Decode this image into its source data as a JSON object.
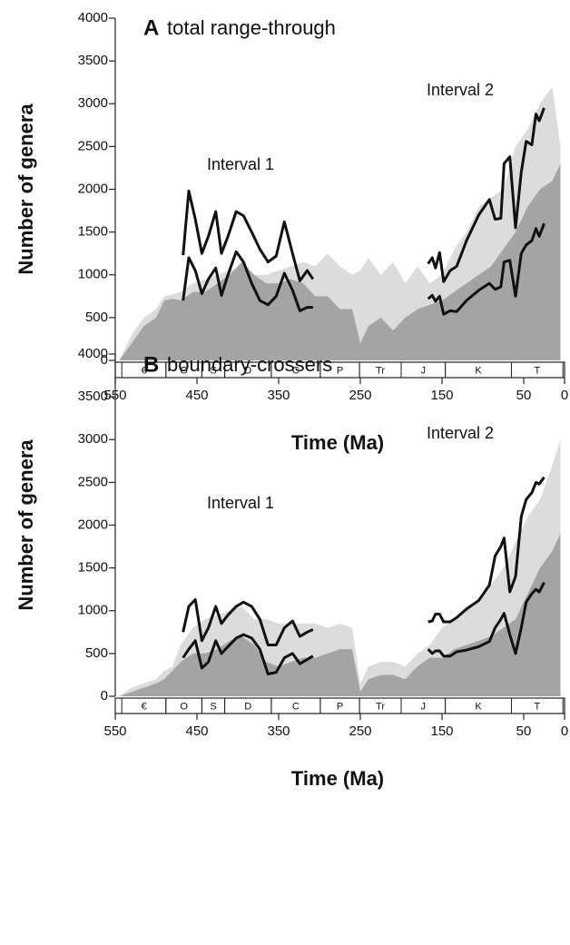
{
  "chart_data": [
    {
      "type": "area-line",
      "panel": "A",
      "title": "total range-through",
      "x_label": "Time (Ma)",
      "y_label": "Number of genera",
      "xlim": [
        550,
        0
      ],
      "xticks": [
        550,
        450,
        350,
        250,
        150,
        50,
        0
      ],
      "ylim": [
        0,
        4000
      ],
      "yticks": [
        0,
        500,
        1000,
        1500,
        2000,
        2500,
        3000,
        3500,
        4000
      ],
      "annotations": [
        "Interval 1",
        "Interval 2"
      ],
      "periods": [
        {
          "label": "€",
          "start": 542,
          "end": 488
        },
        {
          "label": "O",
          "start": 488,
          "end": 444
        },
        {
          "label": "S",
          "start": 444,
          "end": 416
        },
        {
          "label": "D",
          "start": 416,
          "end": 359
        },
        {
          "label": "C",
          "start": 359,
          "end": 299
        },
        {
          "label": "P",
          "start": 299,
          "end": 251
        },
        {
          "label": "Tr",
          "start": 251,
          "end": 200
        },
        {
          "label": "J",
          "start": 200,
          "end": 146
        },
        {
          "label": "K",
          "start": 146,
          "end": 65
        },
        {
          "label": "T",
          "start": 65,
          "end": 2
        }
      ],
      "areas": [
        {
          "color": "#dcdcdc",
          "x": [
            545,
            530,
            515,
            500,
            490,
            480,
            470,
            455,
            440,
            425,
            410,
            395,
            380,
            365,
            350,
            335,
            320,
            305,
            290,
            275,
            260,
            250,
            240,
            225,
            210,
            195,
            180,
            165,
            150,
            135,
            120,
            105,
            90,
            75,
            60,
            45,
            30,
            15,
            5
          ],
          "values": [
            0,
            300,
            500,
            600,
            750,
            770,
            800,
            900,
            950,
            1000,
            1050,
            1100,
            1000,
            1000,
            1050,
            1100,
            1150,
            1100,
            1250,
            1100,
            1000,
            1050,
            1200,
            1000,
            1150,
            900,
            1100,
            900,
            1000,
            1300,
            1500,
            1800,
            1900,
            2000,
            2500,
            2700,
            3000,
            3200,
            2500
          ]
        },
        {
          "color": "#a4a4a4",
          "x": [
            545,
            530,
            515,
            500,
            490,
            480,
            470,
            455,
            440,
            425,
            410,
            395,
            380,
            365,
            350,
            335,
            320,
            305,
            290,
            275,
            260,
            250,
            240,
            225,
            210,
            195,
            180,
            165,
            150,
            135,
            120,
            105,
            90,
            75,
            60,
            45,
            30,
            15,
            5
          ],
          "values": [
            0,
            200,
            400,
            500,
            700,
            720,
            700,
            800,
            800,
            900,
            1000,
            1150,
            1000,
            900,
            900,
            950,
            900,
            750,
            750,
            600,
            600,
            200,
            400,
            500,
            350,
            500,
            600,
            650,
            700,
            800,
            900,
            1000,
            1100,
            1300,
            1500,
            1800,
            2000,
            2100,
            2300
          ]
        }
      ],
      "series": [
        {
          "color": "#111111",
          "x": [
            467,
            460,
            452,
            444,
            436,
            427,
            420,
            412,
            402,
            393,
            383,
            373,
            363,
            353,
            343,
            333,
            324,
            315,
            308
          ],
          "values": [
            1230,
            1980,
            1650,
            1250,
            1450,
            1740,
            1250,
            1450,
            1740,
            1690,
            1500,
            1300,
            1150,
            1220,
            1620,
            1250,
            930,
            1050,
            950
          ]
        },
        {
          "color": "#111111",
          "x": [
            467,
            460,
            452,
            444,
            436,
            427,
            420,
            412,
            402,
            393,
            383,
            373,
            363,
            353,
            343,
            333,
            324,
            315,
            308
          ],
          "values": [
            700,
            1200,
            1050,
            780,
            950,
            1080,
            760,
            1000,
            1270,
            1150,
            900,
            700,
            650,
            750,
            1020,
            820,
            580,
            620,
            620
          ]
        },
        {
          "color": "#111111",
          "x": [
            167,
            162,
            158,
            153,
            148,
            140,
            132,
            120,
            105,
            92,
            85,
            78,
            74,
            67,
            60,
            53,
            47,
            40,
            35,
            31,
            25
          ],
          "values": [
            1130,
            1200,
            1080,
            1260,
            920,
            1050,
            1100,
            1400,
            1700,
            1880,
            1650,
            1660,
            2300,
            2380,
            1550,
            2200,
            2560,
            2520,
            2880,
            2800,
            2950
          ]
        },
        {
          "color": "#111111",
          "x": [
            167,
            162,
            158,
            153,
            148,
            140,
            132,
            120,
            105,
            92,
            85,
            78,
            74,
            67,
            60,
            53,
            47,
            40,
            35,
            31,
            25
          ],
          "values": [
            720,
            760,
            690,
            750,
            540,
            580,
            570,
            700,
            820,
            900,
            830,
            860,
            1150,
            1170,
            750,
            1250,
            1350,
            1400,
            1540,
            1450,
            1600
          ]
        }
      ]
    },
    {
      "type": "area-line",
      "panel": "B",
      "title": "boundary-crossers",
      "x_label": "Time (Ma)",
      "y_label": "Number of genera",
      "xlim": [
        550,
        0
      ],
      "xticks": [
        550,
        450,
        350,
        250,
        150,
        50,
        0
      ],
      "ylim": [
        0,
        4000
      ],
      "yticks": [
        0,
        500,
        1000,
        1500,
        2000,
        2500,
        3000,
        3500,
        4000
      ],
      "annotations": [
        "Interval 1",
        "Interval 2"
      ],
      "periods": [
        {
          "label": "€",
          "start": 542,
          "end": 488
        },
        {
          "label": "O",
          "start": 488,
          "end": 444
        },
        {
          "label": "S",
          "start": 444,
          "end": 416
        },
        {
          "label": "D",
          "start": 416,
          "end": 359
        },
        {
          "label": "C",
          "start": 359,
          "end": 299
        },
        {
          "label": "P",
          "start": 299,
          "end": 251
        },
        {
          "label": "Tr",
          "start": 251,
          "end": 200
        },
        {
          "label": "J",
          "start": 200,
          "end": 146
        },
        {
          "label": "K",
          "start": 146,
          "end": 65
        },
        {
          "label": "T",
          "start": 65,
          "end": 2
        }
      ],
      "areas": [
        {
          "color": "#dcdcdc",
          "x": [
            545,
            530,
            515,
            500,
            490,
            480,
            470,
            455,
            440,
            425,
            410,
            395,
            380,
            365,
            350,
            335,
            320,
            305,
            290,
            275,
            260,
            250,
            240,
            225,
            210,
            195,
            180,
            165,
            150,
            135,
            120,
            105,
            90,
            75,
            60,
            45,
            30,
            15,
            5
          ],
          "values": [
            0,
            100,
            150,
            200,
            300,
            350,
            600,
            800,
            900,
            950,
            1000,
            1050,
            900,
            900,
            850,
            850,
            850,
            850,
            800,
            850,
            800,
            150,
            350,
            400,
            400,
            350,
            500,
            600,
            800,
            900,
            1000,
            1150,
            1300,
            1500,
            1800,
            2100,
            2300,
            2700,
            3000
          ]
        },
        {
          "color": "#a4a4a4",
          "x": [
            545,
            530,
            515,
            500,
            490,
            480,
            470,
            455,
            440,
            425,
            410,
            395,
            380,
            365,
            350,
            335,
            320,
            305,
            290,
            275,
            260,
            250,
            240,
            225,
            210,
            195,
            180,
            165,
            150,
            135,
            120,
            105,
            90,
            75,
            60,
            45,
            30,
            15,
            5
          ],
          "values": [
            0,
            50,
            100,
            150,
            200,
            300,
            400,
            500,
            500,
            550,
            650,
            700,
            600,
            400,
            350,
            400,
            450,
            450,
            500,
            550,
            550,
            50,
            200,
            250,
            250,
            200,
            350,
            450,
            450,
            550,
            600,
            650,
            700,
            800,
            900,
            1200,
            1500,
            1700,
            1900
          ]
        }
      ],
      "series": [
        {
          "color": "#111111",
          "x": [
            467,
            460,
            452,
            444,
            436,
            427,
            420,
            412,
            402,
            393,
            383,
            373,
            363,
            353,
            343,
            333,
            324,
            315,
            308
          ],
          "values": [
            750,
            1050,
            1130,
            650,
            800,
            1050,
            850,
            950,
            1050,
            1100,
            1050,
            900,
            600,
            600,
            800,
            880,
            700,
            750,
            780
          ]
        },
        {
          "color": "#111111",
          "x": [
            467,
            460,
            452,
            444,
            436,
            427,
            420,
            412,
            402,
            393,
            383,
            373,
            363,
            353,
            343,
            333,
            324,
            315,
            308
          ],
          "values": [
            450,
            550,
            650,
            330,
            400,
            650,
            500,
            580,
            680,
            720,
            680,
            550,
            260,
            280,
            450,
            500,
            380,
            430,
            470
          ]
        },
        {
          "color": "#111111",
          "x": [
            167,
            162,
            158,
            153,
            148,
            140,
            132,
            120,
            105,
            92,
            85,
            78,
            74,
            67,
            60,
            53,
            47,
            40,
            35,
            31,
            25
          ],
          "values": [
            870,
            880,
            960,
            960,
            870,
            870,
            920,
            1020,
            1120,
            1300,
            1640,
            1750,
            1850,
            1220,
            1400,
            2100,
            2300,
            2380,
            2500,
            2480,
            2560
          ]
        },
        {
          "color": "#111111",
          "x": [
            167,
            162,
            158,
            153,
            148,
            140,
            132,
            120,
            105,
            92,
            85,
            78,
            74,
            67,
            60,
            53,
            47,
            40,
            35,
            31,
            25
          ],
          "values": [
            550,
            500,
            530,
            530,
            470,
            470,
            520,
            540,
            580,
            640,
            800,
            900,
            970,
            720,
            500,
            800,
            1100,
            1200,
            1250,
            1220,
            1330
          ]
        }
      ]
    }
  ]
}
